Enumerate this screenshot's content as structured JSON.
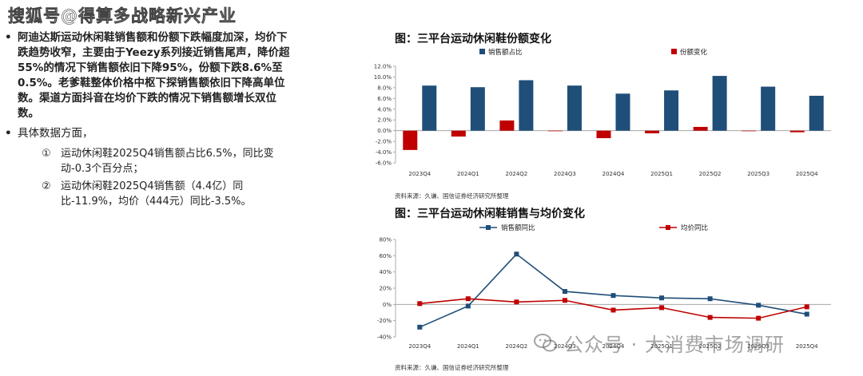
{
  "header": {
    "watermark": "搜狐号@得算多战略新兴产业"
  },
  "text": {
    "bullet1": "阿迪达斯运动休闲鞋销售额和份额下跌幅度加深，均价下跌趋势收窄，主要由于Yeezy系列接近销售尾声，降价超55%的情况下销售额依旧下降95%，份额下跌8.6%至0.5%。老爹鞋整体价格中枢下探销售额依旧下降高单位数。渠道方面抖音在均价下跌的情况下销售额增长双位数。",
    "bullet2": "具体数据方面，",
    "sub1_num": "①",
    "sub1": "运动休闲鞋2025Q4销售额占比6.5%，同比变动-0.3个百分点；",
    "sub2_num": "②",
    "sub2": "运动休闲鞋2025Q4销售额（4.4亿）同比-11.9%，均价（444元）同比-3.5%。"
  },
  "watermark_bottom": {
    "text": "公众号 · 大消费市场调研",
    "icon": "wechat-icon"
  },
  "colors": {
    "navy": "#1f4e79",
    "red": "#c00000",
    "axis": "#999999"
  },
  "chart_data": [
    {
      "type": "bar",
      "title": "图：三平台运动休闲鞋份额变化",
      "categories": [
        "2023Q4",
        "2024Q1",
        "2024Q2",
        "2024Q3",
        "2024Q4",
        "2025Q1",
        "2025Q2",
        "2025Q3",
        "2025Q4"
      ],
      "series": [
        {
          "name": "销售额占比",
          "color": "#1f4e79",
          "values": [
            8.4,
            8.1,
            9.4,
            8.4,
            6.9,
            7.5,
            10.2,
            8.2,
            6.5
          ]
        },
        {
          "name": "份额变化",
          "color": "#c00000",
          "values": [
            -3.6,
            -1.1,
            1.9,
            -0.1,
            -1.4,
            -0.5,
            0.7,
            -0.1,
            -0.3
          ]
        }
      ],
      "yticks": [
        "12.0%",
        "10.0%",
        "8.0%",
        "6.0%",
        "4.0%",
        "2.0%",
        "0.0%",
        "-2.0%",
        "-4.0%",
        "-6.0%"
      ],
      "ylim": [
        -6,
        12
      ],
      "legend": "top",
      "source": "资料来源：久谦、国信证券经济研究所整理"
    },
    {
      "type": "line",
      "title": "图：三平台运动休闲鞋销售与均价变化",
      "categories": [
        "2023Q4",
        "2024Q1",
        "2024Q2",
        "2024Q3",
        "2024Q4",
        "2025Q1",
        "2025Q2",
        "2025Q3",
        "2025Q4"
      ],
      "series": [
        {
          "name": "销售额同比",
          "color": "#1f4e79",
          "values": [
            -28,
            -2,
            62,
            16,
            11,
            8,
            7,
            -1,
            -12
          ]
        },
        {
          "name": "均价同比",
          "color": "#c00000",
          "values": [
            1,
            7,
            3,
            5,
            -7,
            -4,
            -16,
            -17,
            -3
          ]
        }
      ],
      "yticks": [
        "80%",
        "60%",
        "40%",
        "20%",
        "0%",
        "-20%",
        "-40%"
      ],
      "ylim": [
        -40,
        80
      ],
      "legend": "top",
      "source": "资料来源：久谦、国信证券经济研究所整理"
    }
  ]
}
